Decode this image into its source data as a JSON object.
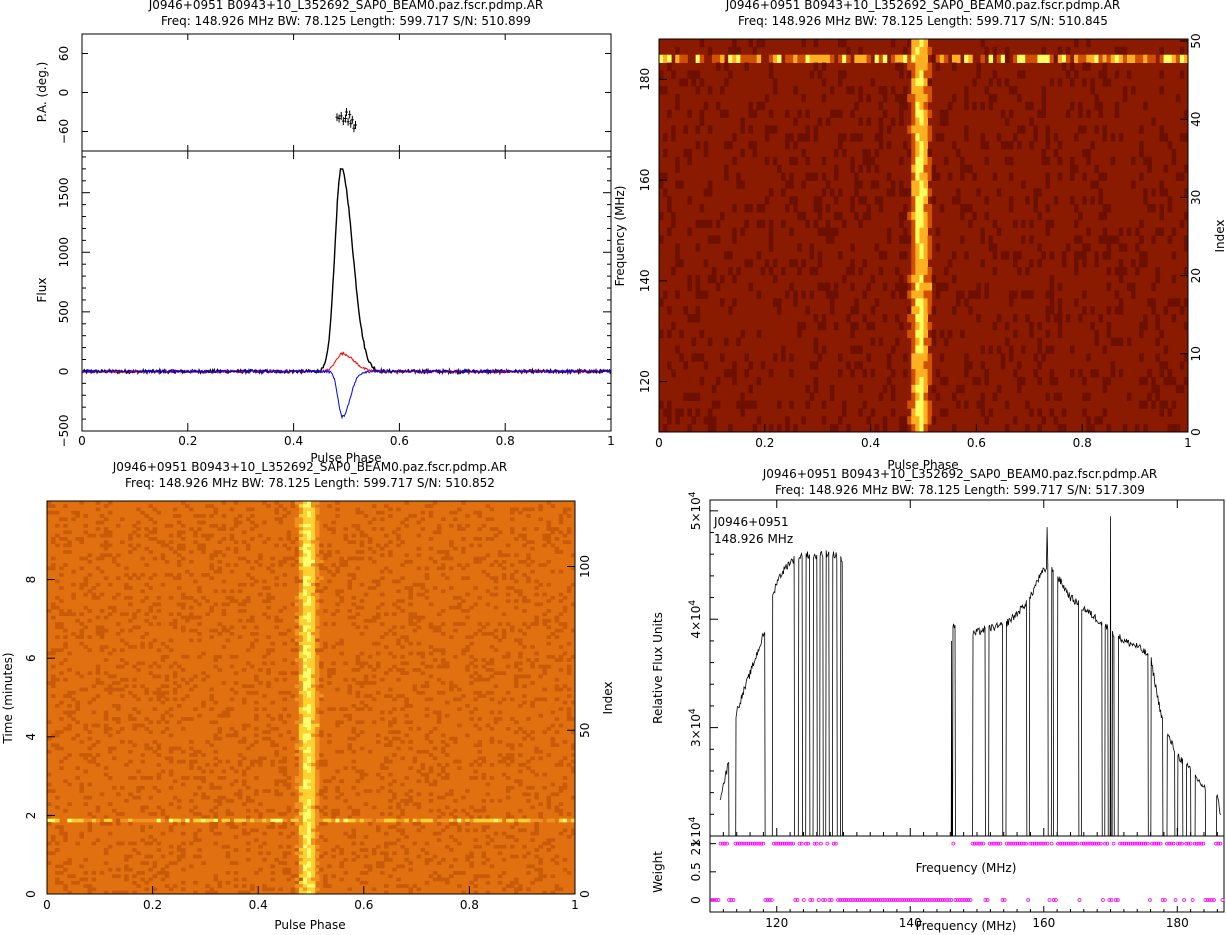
{
  "colors": {
    "total": "#000000",
    "linear": "#ff0000",
    "circular": "#0000ff",
    "weight_marker": "#ff00ff",
    "heat_dark": "#5a0a00",
    "heat_mid": "#c04000",
    "heat_bright": "#ffff60",
    "time_bg": "#e07010"
  },
  "chart_data": [
    {
      "type": "line",
      "panel": "profile-and-pa",
      "title_line1": "J0946+0951  B0943+10_L352692_SAP0_BEAM0.paz.fscr.pdmp.AR",
      "title_line2": "Freq:  148.926  MHz  BW:  78.125  Length:  599.717  S/N:  510.899",
      "xlabel": "Pulse Phase",
      "xlim": [
        0,
        1
      ],
      "x_ticks": [
        "0",
        "0.2",
        "0.4",
        "0.6",
        "0.8",
        "1"
      ],
      "pa": {
        "ylabel": "P.A. (deg.)",
        "ylim": [
          -90,
          90
        ],
        "y_ticks": [
          "60",
          "0",
          "−60"
        ],
        "points": [
          [
            0.482,
            -38
          ],
          [
            0.486,
            -40
          ],
          [
            0.49,
            -36
          ],
          [
            0.494,
            -44
          ],
          [
            0.498,
            -40
          ],
          [
            0.5,
            -30
          ],
          [
            0.503,
            -45
          ],
          [
            0.506,
            -34
          ],
          [
            0.508,
            -48
          ],
          [
            0.511,
            -42
          ],
          [
            0.514,
            -55
          ],
          [
            0.517,
            -50
          ]
        ]
      },
      "flux": {
        "ylabel": "Flux",
        "ylim": [
          -500,
          1850
        ],
        "y_ticks": [
          "1500",
          "1000",
          "500",
          "0",
          "−500"
        ],
        "series": [
          {
            "key": "total",
            "peak": 1700,
            "center": 0.49,
            "width": 0.012
          },
          {
            "key": "linear",
            "peak": 150,
            "center": 0.492,
            "width": 0.012
          },
          {
            "key": "circular",
            "peak": -380,
            "center": 0.492,
            "width": 0.008
          }
        ]
      }
    },
    {
      "type": "heatmap",
      "panel": "phase-frequency",
      "title_line1": "J0946+0951  B0943+10_L352692_SAP0_BEAM0.paz.fscr.pdmp.AR",
      "title_line2": "Freq:  148.926  MHz  BW:  78.125  Length:  599.717  S/N:  510.845",
      "xlabel": "Pulse Phase",
      "ylabel": "Frequency (MHz)",
      "y2label": "Index",
      "xlim": [
        0,
        1
      ],
      "ylim": [
        110,
        188
      ],
      "x_ticks": [
        "0",
        "0.2",
        "0.4",
        "0.6",
        "0.8",
        "1"
      ],
      "y_ticks": [
        "120",
        "140",
        "160",
        "180"
      ],
      "y2_ticks": [
        "0",
        "10",
        "20",
        "30",
        "40",
        "50"
      ],
      "pulse_center": 0.49,
      "rows": 50,
      "bright_row": 47
    },
    {
      "type": "heatmap",
      "panel": "phase-time",
      "title_line1": "J0946+0951  B0943+10_L352692_SAP0_BEAM0.paz.fscr.pdmp.AR",
      "title_line2": "Freq:  148.926  MHz  BW:  78.125  Length:  599.717  S/N:  510.852",
      "xlabel": "Pulse Phase",
      "ylabel": "Time (minutes)",
      "y2label": "Index",
      "xlim": [
        0,
        1
      ],
      "ylim": [
        0,
        10
      ],
      "x_ticks": [
        "0",
        "0.2",
        "0.4",
        "0.6",
        "0.8",
        "1"
      ],
      "y_ticks": [
        "0",
        "2",
        "4",
        "6",
        "8"
      ],
      "y2_ticks": [
        "0",
        "50",
        "100"
      ],
      "pulse_center": 0.49,
      "rows": 120,
      "bright_row_time": 1.87
    },
    {
      "type": "line",
      "panel": "bandpass",
      "title_line1": "J0946+0951  B0943+10_L352692_SAP0_BEAM0.paz.fscr.pdmp.AR",
      "title_line2": "Freq:  148.926  MHz  BW:  78.125  Length:  599.717  S/N:  517.309",
      "annotation_line1": "J0946+0951",
      "annotation_line2": "148.926  MHz",
      "xlabel": "Frequency (MHz)",
      "inner_xlabel": "Frequency (MHz)",
      "ylabel": "Relative Flux Units",
      "weight_label": "Weight",
      "xlim": [
        110,
        187
      ],
      "ylim": [
        20000,
        51000
      ],
      "x_ticks": [
        "120",
        "140",
        "160",
        "180"
      ],
      "y_ticks": [
        {
          "base": "2×10",
          "exp": "4"
        },
        {
          "base": "3×10",
          "exp": "4"
        },
        {
          "base": "4×10",
          "exp": "4"
        },
        {
          "base": "5×10",
          "exp": "4"
        }
      ],
      "weight_ticks": [
        "0",
        "0.5",
        "1"
      ],
      "envelope": [
        [
          111.5,
          23500
        ],
        [
          112.5,
          26000
        ],
        [
          114,
          31500
        ],
        [
          116,
          35000
        ],
        [
          118,
          38500
        ],
        [
          119,
          41000
        ],
        [
          120,
          43500
        ],
        [
          121,
          44500
        ],
        [
          122,
          45300
        ],
        [
          124,
          46000
        ],
        [
          126,
          45800
        ],
        [
          128,
          46200
        ],
        [
          129.7,
          45500
        ],
        [
          149,
          38500
        ],
        [
          150,
          38800
        ],
        [
          152,
          39200
        ],
        [
          154,
          39400
        ],
        [
          156,
          40500
        ],
        [
          158,
          42000
        ],
        [
          159,
          43500
        ],
        [
          160,
          44500
        ],
        [
          161,
          45000
        ],
        [
          162,
          44000
        ],
        [
          164,
          42000
        ],
        [
          166,
          41000
        ],
        [
          168,
          40000
        ],
        [
          170,
          39000
        ],
        [
          172,
          38000
        ],
        [
          174,
          37500
        ],
        [
          176,
          36500
        ],
        [
          177,
          33000
        ],
        [
          178,
          30000
        ],
        [
          180,
          27500
        ],
        [
          182,
          26000
        ],
        [
          184,
          24500
        ],
        [
          186,
          23500
        ],
        [
          186.5,
          22000
        ]
      ],
      "gaps": [
        [
          112.8,
          113.8
        ],
        [
          118.2,
          119.3
        ],
        [
          122.6,
          123.2
        ],
        [
          123.8,
          124.3
        ],
        [
          124.9,
          125.4
        ],
        [
          126.0,
          126.4
        ],
        [
          126.9,
          127.3
        ],
        [
          127.8,
          128.3
        ],
        [
          129.0,
          129.5
        ],
        [
          129.8,
          146.3
        ],
        [
          146.7,
          149.3
        ],
        [
          151.2,
          151.7
        ],
        [
          153.8,
          154.3
        ],
        [
          157.4,
          157.8
        ],
        [
          160.6,
          161.1
        ],
        [
          161.4,
          162.0
        ],
        [
          165.2,
          165.6
        ],
        [
          168.7,
          169.1
        ],
        [
          169.6,
          170.2
        ],
        [
          170.5,
          171.1
        ],
        [
          175.6,
          176.0
        ],
        [
          177.8,
          178.4
        ],
        [
          179.6,
          180.0
        ],
        [
          180.8,
          181.3
        ],
        [
          182.0,
          182.6
        ],
        [
          184.2,
          185.8
        ]
      ],
      "spikes": [
        [
          160.5,
          48500
        ],
        [
          170.0,
          49500
        ],
        [
          146.2,
          38000
        ]
      ]
    }
  ]
}
